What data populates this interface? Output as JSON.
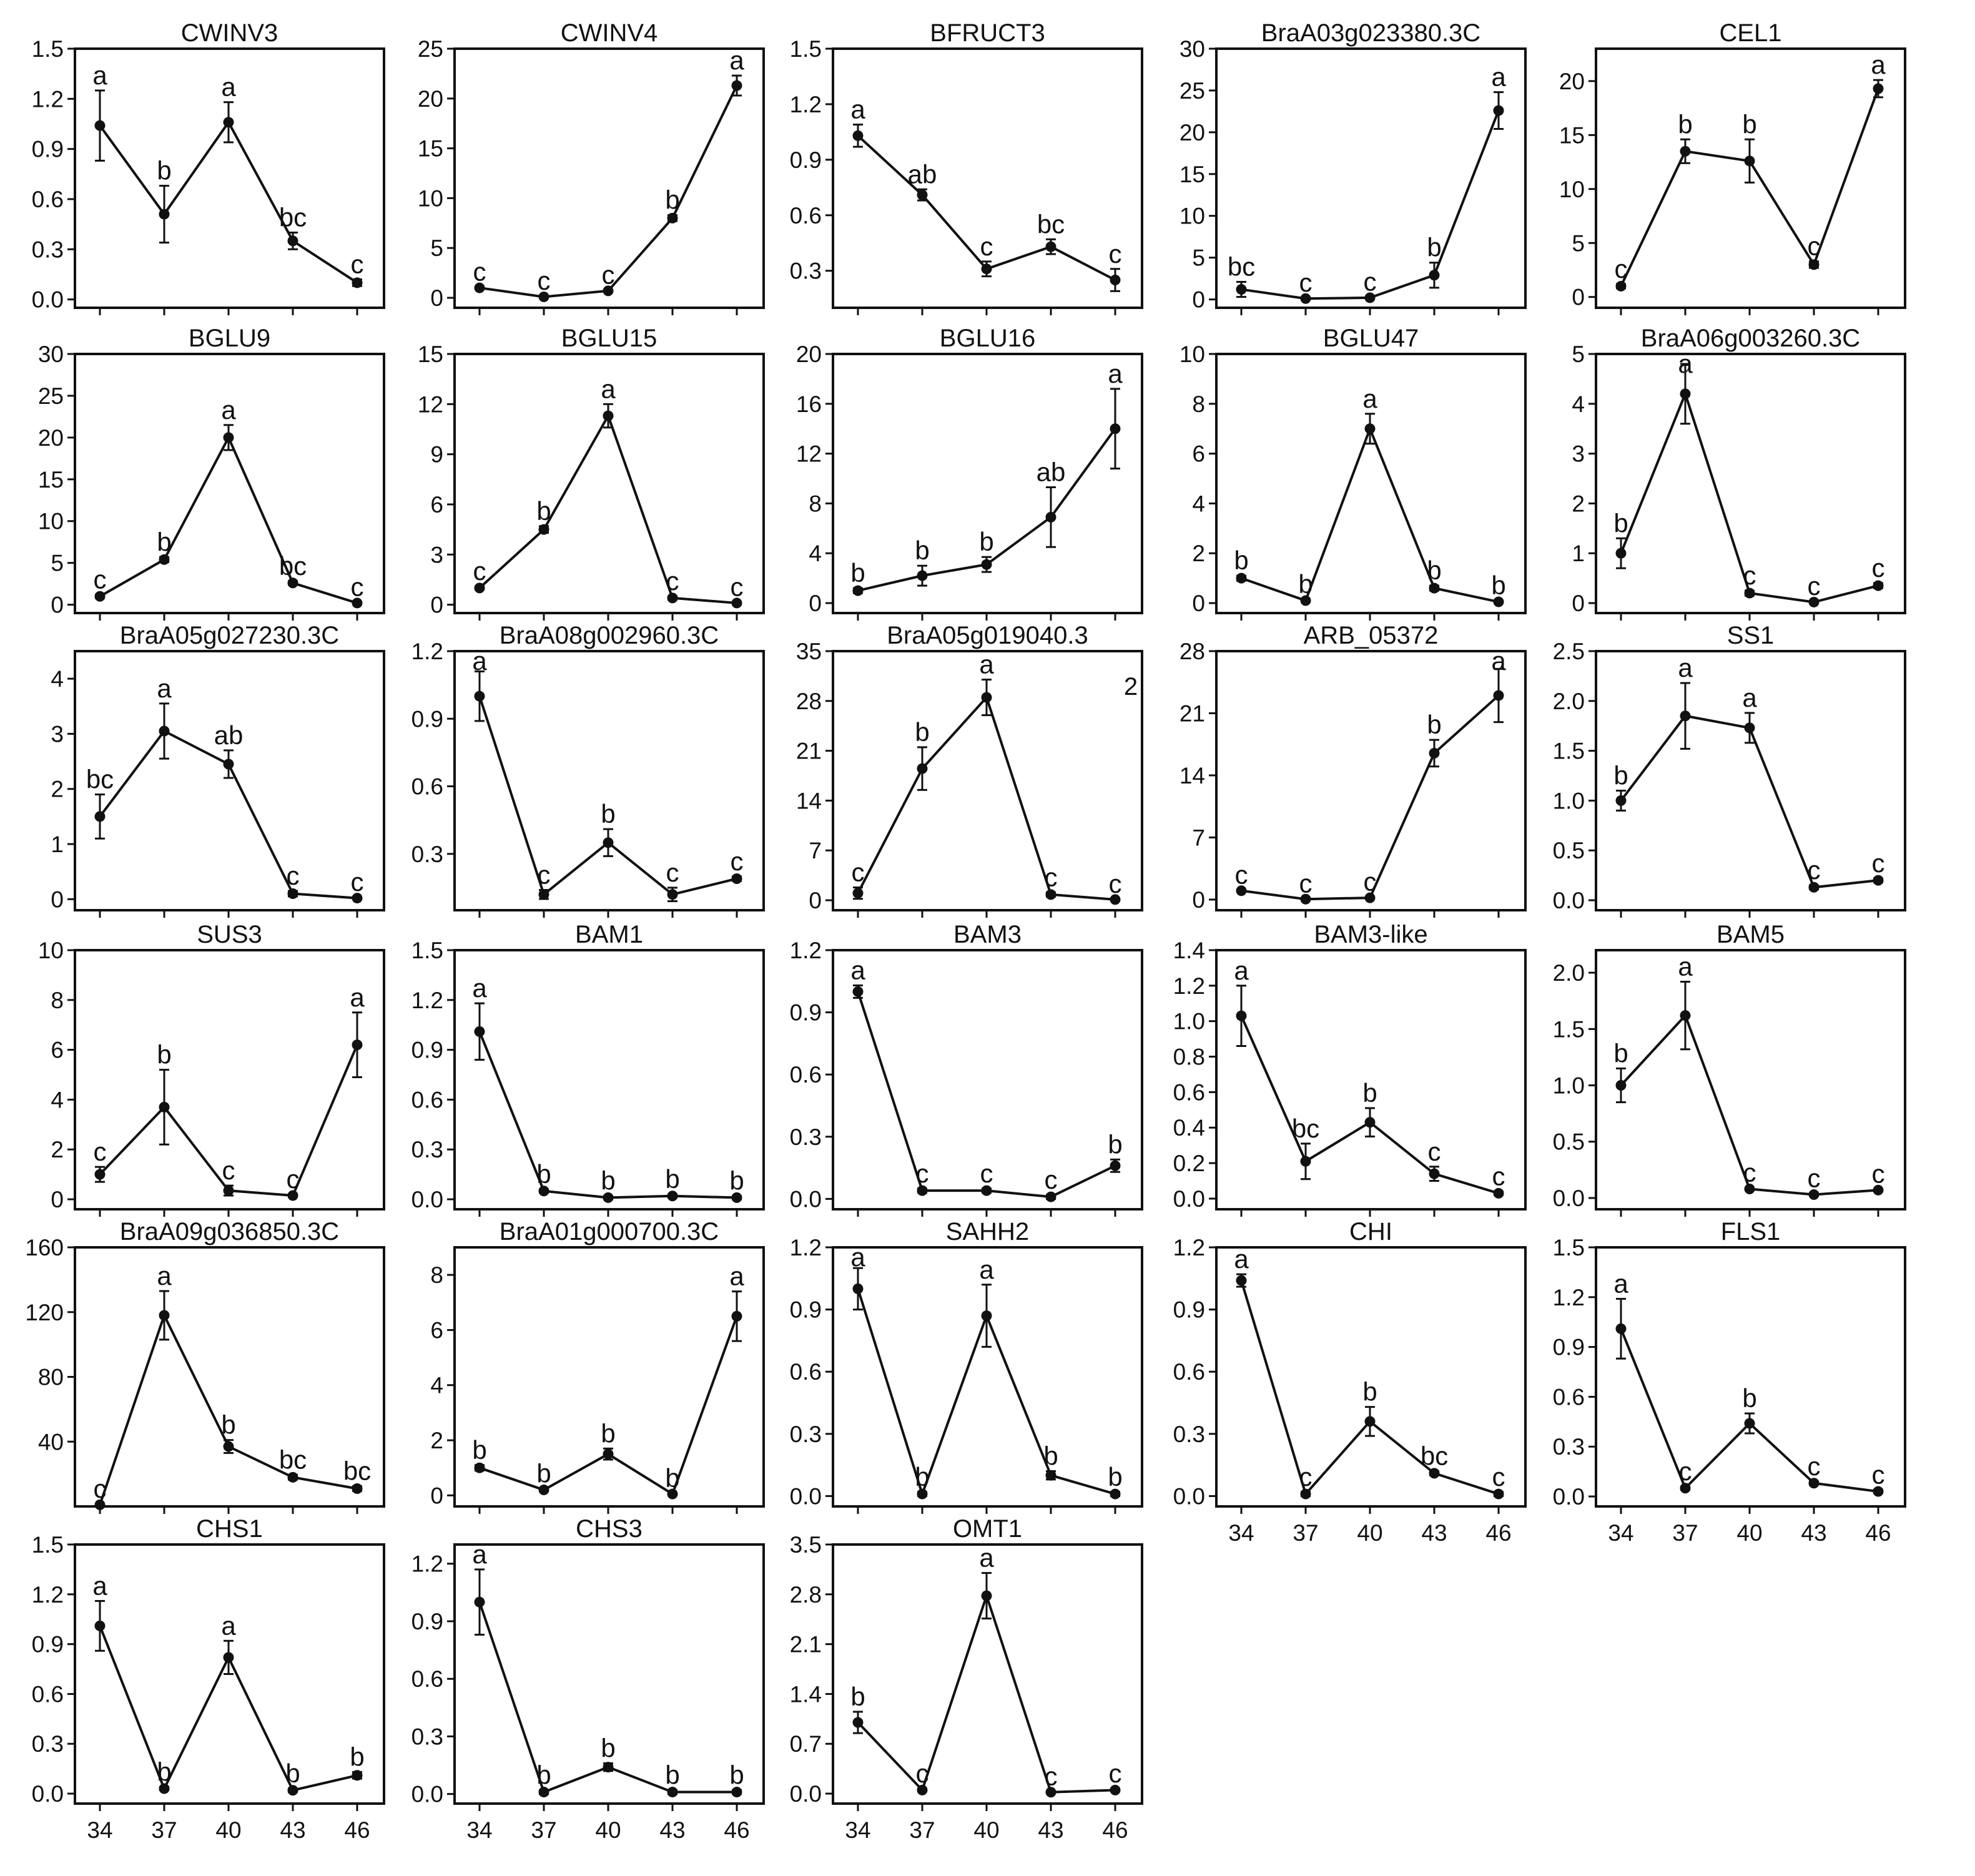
{
  "figure": {
    "x_categories": [
      "34",
      "37",
      "40",
      "43",
      "46"
    ],
    "colors": {
      "line": "#111111",
      "marker": "#111111",
      "frame": "#111111",
      "background": "#ffffff"
    }
  },
  "chart_data": [
    {
      "type": "line",
      "title": "CWINV3",
      "yticks": [
        "0.0",
        "0.3",
        "0.6",
        "0.9",
        "1.2",
        "1.5"
      ],
      "ylim": [
        -0.05,
        1.5
      ],
      "x_tick_labels_shown": false,
      "values": [
        1.04,
        0.51,
        1.06,
        0.35,
        0.1
      ],
      "errors": [
        0.21,
        0.17,
        0.12,
        0.05,
        0.02
      ],
      "letters": [
        "a",
        "b",
        "a",
        "bc",
        "c"
      ]
    },
    {
      "type": "line",
      "title": "CWINV4",
      "yticks": [
        "0",
        "5",
        "10",
        "15",
        "20",
        "25"
      ],
      "ylim": [
        -1,
        25
      ],
      "x_tick_labels_shown": false,
      "values": [
        1.0,
        0.1,
        0.7,
        8.0,
        21.3
      ],
      "errors": [
        0.1,
        0.1,
        0.1,
        0.3,
        1.0
      ],
      "letters": [
        "c",
        "c",
        "c",
        "b",
        "a"
      ]
    },
    {
      "type": "line",
      "title": "BFRUCT3",
      "yticks": [
        "0.3",
        "0.6",
        "0.9",
        "1.2",
        "1.5"
      ],
      "ylim": [
        0.1,
        1.5
      ],
      "x_tick_labels_shown": false,
      "values": [
        1.03,
        0.71,
        0.31,
        0.43,
        0.25
      ],
      "errors": [
        0.06,
        0.03,
        0.04,
        0.04,
        0.06
      ],
      "letters": [
        "a",
        "ab",
        "c",
        "bc",
        "c"
      ]
    },
    {
      "type": "line",
      "title": "BraA03g023380.3C",
      "yticks": [
        "0",
        "5",
        "10",
        "15",
        "20",
        "25",
        "30"
      ],
      "ylim": [
        -1,
        30
      ],
      "x_tick_labels_shown": false,
      "values": [
        1.2,
        0.1,
        0.2,
        2.9,
        22.6
      ],
      "errors": [
        0.9,
        0.1,
        0.1,
        1.5,
        2.2
      ],
      "letters": [
        "bc",
        "c",
        "c",
        "b",
        "a"
      ]
    },
    {
      "type": "line",
      "title": "CEL1",
      "yticks": [
        "0",
        "5",
        "10",
        "15",
        "20"
      ],
      "ylim": [
        -1,
        23
      ],
      "x_tick_labels_shown": false,
      "values": [
        1.0,
        13.5,
        12.6,
        3.0,
        19.3
      ],
      "errors": [
        0.2,
        1.1,
        2.0,
        0.3,
        0.8
      ],
      "letters": [
        "c",
        "b",
        "b",
        "c",
        "a"
      ]
    },
    {
      "type": "line",
      "title": "BGLU9",
      "yticks": [
        "0",
        "5",
        "10",
        "15",
        "20",
        "25",
        "30"
      ],
      "ylim": [
        -1,
        30
      ],
      "x_tick_labels_shown": false,
      "values": [
        1.0,
        5.4,
        20.0,
        2.6,
        0.2
      ],
      "errors": [
        0.2,
        0.3,
        1.5,
        0.2,
        0.1
      ],
      "letters": [
        "c",
        "b",
        "a",
        "bc",
        "c"
      ]
    },
    {
      "type": "line",
      "title": "BGLU15",
      "yticks": [
        "0",
        "3",
        "6",
        "9",
        "12",
        "15"
      ],
      "ylim": [
        -0.5,
        15
      ],
      "x_tick_labels_shown": false,
      "values": [
        1.0,
        4.5,
        11.3,
        0.4,
        0.1
      ],
      "errors": [
        0.1,
        0.2,
        0.7,
        0.1,
        0.05
      ],
      "letters": [
        "c",
        "b",
        "a",
        "c",
        "c"
      ]
    },
    {
      "type": "line",
      "title": "BGLU16",
      "yticks": [
        "0",
        "4",
        "8",
        "12",
        "16",
        "20"
      ],
      "ylim": [
        -0.8,
        20
      ],
      "x_tick_labels_shown": false,
      "values": [
        1.0,
        2.2,
        3.1,
        6.9,
        14.0
      ],
      "errors": [
        0.2,
        0.8,
        0.6,
        2.4,
        3.2
      ],
      "letters": [
        "b",
        "b",
        "b",
        "ab",
        "a"
      ]
    },
    {
      "type": "line",
      "title": "BGLU47",
      "yticks": [
        "0",
        "2",
        "4",
        "6",
        "8",
        "10"
      ],
      "ylim": [
        -0.4,
        10
      ],
      "x_tick_labels_shown": false,
      "values": [
        1.0,
        0.1,
        7.0,
        0.6,
        0.05
      ],
      "errors": [
        0.1,
        0.05,
        0.6,
        0.1,
        0.05
      ],
      "letters": [
        "b",
        "b",
        "a",
        "b",
        "b"
      ]
    },
    {
      "type": "line",
      "title": "BraA06g003260.3C",
      "yticks": [
        "0",
        "1",
        "2",
        "3",
        "4",
        "5"
      ],
      "ylim": [
        -0.2,
        5
      ],
      "x_tick_labels_shown": false,
      "values": [
        1.0,
        4.2,
        0.2,
        0.02,
        0.35
      ],
      "errors": [
        0.3,
        0.6,
        0.05,
        0.02,
        0.05
      ],
      "letters": [
        "b",
        "a",
        "c",
        "c",
        "c"
      ]
    },
    {
      "type": "line",
      "title": "BraA05g027230.3C",
      "yticks": [
        "0",
        "1",
        "2",
        "3",
        "4"
      ],
      "ylim": [
        -0.2,
        4.5
      ],
      "x_tick_labels_shown": false,
      "values": [
        1.5,
        3.05,
        2.45,
        0.1,
        0.02
      ],
      "errors": [
        0.4,
        0.5,
        0.25,
        0.05,
        0.02
      ],
      "letters": [
        "bc",
        "a",
        "ab",
        "c",
        "c"
      ]
    },
    {
      "type": "line",
      "title": "BraA08g002960.3C",
      "yticks": [
        "0.3",
        "0.6",
        "0.9",
        "1.2"
      ],
      "ylim": [
        0.05,
        1.2
      ],
      "x_tick_labels_shown": false,
      "values": [
        1.0,
        0.12,
        0.35,
        0.12,
        0.19
      ],
      "errors": [
        0.11,
        0.02,
        0.06,
        0.03,
        0.01
      ],
      "letters": [
        "a",
        "c",
        "b",
        "c",
        "c"
      ]
    },
    {
      "type": "line",
      "title": "BraA05g019040.3",
      "title_extra": "2",
      "yticks": [
        "0",
        "7",
        "14",
        "21",
        "28",
        "35"
      ],
      "ylim": [
        -1.4,
        35
      ],
      "x_tick_labels_shown": false,
      "values": [
        1.0,
        18.5,
        28.5,
        0.8,
        0.1
      ],
      "errors": [
        0.8,
        3.0,
        2.5,
        0.3,
        0.1
      ],
      "letters": [
        "c",
        "b",
        "a",
        "c",
        "c"
      ]
    },
    {
      "type": "line",
      "title": "ARB_05372",
      "yticks": [
        "0",
        "7",
        "14",
        "21",
        "28"
      ],
      "ylim": [
        -1.2,
        28
      ],
      "x_tick_labels_shown": false,
      "values": [
        1.0,
        0.05,
        0.2,
        16.5,
        23.0
      ],
      "errors": [
        0.1,
        0.05,
        0.1,
        1.5,
        3.0
      ],
      "letters": [
        "c",
        "c",
        "c",
        "b",
        "a"
      ]
    },
    {
      "type": "line",
      "title": "SS1",
      "yticks": [
        "0.0",
        "0.5",
        "1.0",
        "1.5",
        "2.0",
        "2.5"
      ],
      "ylim": [
        -0.1,
        2.5
      ],
      "x_tick_labels_shown": false,
      "values": [
        1.0,
        1.85,
        1.73,
        0.13,
        0.2
      ],
      "errors": [
        0.1,
        0.33,
        0.15,
        0.02,
        0.02
      ],
      "letters": [
        "b",
        "a",
        "a",
        "c",
        "c"
      ]
    },
    {
      "type": "line",
      "title": "SUS3",
      "yticks": [
        "0",
        "2",
        "4",
        "6",
        "8",
        "10"
      ],
      "ylim": [
        -0.4,
        10
      ],
      "x_tick_labels_shown": false,
      "values": [
        1.0,
        3.7,
        0.35,
        0.15,
        6.2
      ],
      "errors": [
        0.3,
        1.5,
        0.2,
        0.05,
        1.3
      ],
      "letters": [
        "c",
        "b",
        "c",
        "c",
        "a"
      ]
    },
    {
      "type": "line",
      "title": "BAM1",
      "yticks": [
        "0.0",
        "0.3",
        "0.6",
        "0.9",
        "1.2",
        "1.5"
      ],
      "ylim": [
        -0.06,
        1.5
      ],
      "x_tick_labels_shown": false,
      "values": [
        1.01,
        0.05,
        0.01,
        0.02,
        0.01
      ],
      "errors": [
        0.17,
        0.01,
        0.01,
        0.01,
        0.01
      ],
      "letters": [
        "a",
        "b",
        "b",
        "b",
        "b"
      ]
    },
    {
      "type": "line",
      "title": "BAM3",
      "yticks": [
        "0.0",
        "0.3",
        "0.6",
        "0.9",
        "1.2"
      ],
      "ylim": [
        -0.05,
        1.2
      ],
      "x_tick_labels_shown": false,
      "values": [
        1.0,
        0.04,
        0.04,
        0.01,
        0.16
      ],
      "errors": [
        0.03,
        0.01,
        0.01,
        0.01,
        0.03
      ],
      "letters": [
        "a",
        "c",
        "c",
        "c",
        "b"
      ]
    },
    {
      "type": "line",
      "title": "BAM3-like",
      "yticks": [
        "0.0",
        "0.2",
        "0.4",
        "0.6",
        "0.8",
        "1.0",
        "1.2",
        "1.4"
      ],
      "ylim": [
        -0.06,
        1.4
      ],
      "x_tick_labels_shown": false,
      "values": [
        1.03,
        0.21,
        0.43,
        0.14,
        0.03
      ],
      "errors": [
        0.17,
        0.1,
        0.08,
        0.04,
        0.01
      ],
      "letters": [
        "a",
        "bc",
        "b",
        "c",
        "c"
      ]
    },
    {
      "type": "line",
      "title": "BAM5",
      "yticks": [
        "0.0",
        "0.5",
        "1.0",
        "1.5",
        "2.0"
      ],
      "ylim": [
        -0.1,
        2.2
      ],
      "x_tick_labels_shown": false,
      "values": [
        1.0,
        1.62,
        0.08,
        0.03,
        0.07
      ],
      "errors": [
        0.15,
        0.3,
        0.01,
        0.01,
        0.01
      ],
      "letters": [
        "b",
        "a",
        "c",
        "c",
        "c"
      ]
    },
    {
      "type": "line",
      "title": "BraA09g036850.3C",
      "yticks": [
        "40",
        "80",
        "120",
        "160"
      ],
      "ylim": [
        0,
        160
      ],
      "x_tick_labels_shown": false,
      "values": [
        1.0,
        118,
        37,
        18,
        11
      ],
      "errors": [
        0.5,
        15,
        4,
        1.5,
        1.5
      ],
      "letters": [
        "c",
        "a",
        "b",
        "bc",
        "bc"
      ]
    },
    {
      "type": "line",
      "title": "BraA01g000700.3C",
      "yticks": [
        "0",
        "2",
        "4",
        "6",
        "8"
      ],
      "ylim": [
        -0.4,
        9
      ],
      "x_tick_labels_shown": false,
      "values": [
        1.0,
        0.2,
        1.5,
        0.05,
        6.5
      ],
      "errors": [
        0.1,
        0.05,
        0.2,
        0.03,
        0.9
      ],
      "letters": [
        "b",
        "b",
        "b",
        "b",
        "a"
      ]
    },
    {
      "type": "line",
      "title": "SAHH2",
      "yticks": [
        "0.0",
        "0.3",
        "0.6",
        "0.9",
        "1.2"
      ],
      "ylim": [
        -0.05,
        1.2
      ],
      "x_tick_labels_shown": false,
      "values": [
        1.0,
        0.01,
        0.87,
        0.1,
        0.01
      ],
      "errors": [
        0.1,
        0.01,
        0.15,
        0.02,
        0.01
      ],
      "letters": [
        "a",
        "b",
        "a",
        "b",
        "b"
      ]
    },
    {
      "type": "line",
      "title": "CHI",
      "yticks": [
        "0.0",
        "0.3",
        "0.6",
        "0.9",
        "1.2"
      ],
      "ylim": [
        -0.05,
        1.2
      ],
      "x_tick_labels_shown": true,
      "values": [
        1.04,
        0.01,
        0.36,
        0.11,
        0.01
      ],
      "errors": [
        0.03,
        0.01,
        0.07,
        0.01,
        0.01
      ],
      "letters": [
        "a",
        "c",
        "b",
        "bc",
        "c"
      ]
    },
    {
      "type": "line",
      "title": "FLS1",
      "yticks": [
        "0.0",
        "0.3",
        "0.6",
        "0.9",
        "1.2",
        "1.5"
      ],
      "ylim": [
        -0.06,
        1.5
      ],
      "x_tick_labels_shown": true,
      "values": [
        1.01,
        0.05,
        0.44,
        0.08,
        0.03
      ],
      "errors": [
        0.18,
        0.01,
        0.06,
        0.01,
        0.01
      ],
      "letters": [
        "a",
        "c",
        "b",
        "c",
        "c"
      ]
    },
    {
      "type": "line",
      "title": "CHS1",
      "yticks": [
        "0.0",
        "0.3",
        "0.6",
        "0.9",
        "1.2",
        "1.5"
      ],
      "ylim": [
        -0.06,
        1.5
      ],
      "x_tick_labels_shown": true,
      "values": [
        1.01,
        0.03,
        0.82,
        0.02,
        0.11
      ],
      "errors": [
        0.15,
        0.01,
        0.1,
        0.01,
        0.02
      ],
      "letters": [
        "a",
        "b",
        "a",
        "b",
        "b"
      ]
    },
    {
      "type": "line",
      "title": "CHS3",
      "yticks": [
        "0.0",
        "0.3",
        "0.6",
        "0.9",
        "1.2"
      ],
      "ylim": [
        -0.05,
        1.3
      ],
      "x_tick_labels_shown": true,
      "values": [
        1.0,
        0.01,
        0.14,
        0.01,
        0.01
      ],
      "errors": [
        0.17,
        0.01,
        0.02,
        0.01,
        0.01
      ],
      "letters": [
        "a",
        "b",
        "b",
        "b",
        "b"
      ]
    },
    {
      "type": "line",
      "title": "OMT1",
      "yticks": [
        "0.0",
        "0.7",
        "1.4",
        "2.1",
        "2.8",
        "3.5"
      ],
      "ylim": [
        -0.14,
        3.5
      ],
      "x_tick_labels_shown": true,
      "values": [
        1.0,
        0.05,
        2.78,
        0.02,
        0.05
      ],
      "errors": [
        0.15,
        0.02,
        0.32,
        0.01,
        0.02
      ],
      "letters": [
        "b",
        "c",
        "a",
        "c",
        "c"
      ]
    }
  ]
}
